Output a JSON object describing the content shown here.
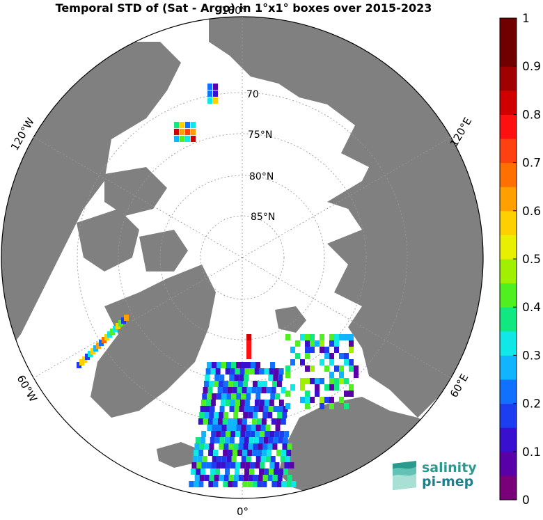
{
  "title": "Temporal STD of (Sat - Argo) in 1°x1° boxes over 2015-2023",
  "map": {
    "projection": "north-polar-stereographic",
    "longitude_labels": [
      {
        "text": "180°",
        "key": "top"
      },
      {
        "text": "120°E",
        "key": "upper-right"
      },
      {
        "text": "60°E",
        "key": "lower-right"
      },
      {
        "text": "0°",
        "key": "bottom"
      },
      {
        "text": "60°W",
        "key": "lower-left"
      },
      {
        "text": "120°W",
        "key": "upper-left"
      }
    ],
    "latitude_labels": [
      "70",
      "75°N",
      "80°N",
      "85°N"
    ],
    "land_color": "#808080",
    "ocean_color": "#ffffff"
  },
  "colorbar": {
    "min": 0,
    "max": 1,
    "ticks": [
      "0",
      "0.1",
      "0.2",
      "0.3",
      "0.4",
      "0.5",
      "0.6",
      "0.7",
      "0.8",
      "0.9",
      "1"
    ],
    "colors": [
      "#7a007a",
      "#5a00a8",
      "#3a10d0",
      "#1c3ef0",
      "#1070ff",
      "#10b4ff",
      "#10e8e8",
      "#10e880",
      "#50f020",
      "#a0f000",
      "#e8f000",
      "#ffd000",
      "#ffa000",
      "#ff7000",
      "#ff4010",
      "#ff1010",
      "#d00000",
      "#a00000",
      "#700000",
      "#700000"
    ]
  },
  "logo": {
    "line1": "salinity",
    "line2": "pi-mep"
  }
}
